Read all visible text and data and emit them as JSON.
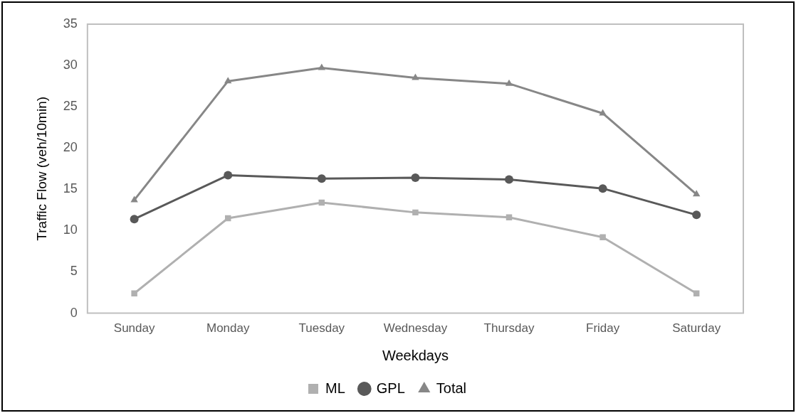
{
  "chart_data": {
    "type": "line",
    "xlabel": "Weekdays",
    "ylabel": "Traffic Flow (veh/10min)",
    "categories": [
      "Sunday",
      "Monday",
      "Tuesday",
      "Wednesday",
      "Thursday",
      "Friday",
      "Saturday"
    ],
    "series": [
      {
        "name": "ML",
        "color": "#b0b0b0",
        "marker": "square",
        "values": [
          2.4,
          11.5,
          13.4,
          12.2,
          11.6,
          9.2,
          2.4
        ]
      },
      {
        "name": "GPL",
        "color": "#595959",
        "marker": "circle",
        "values": [
          11.4,
          16.7,
          16.3,
          16.4,
          16.2,
          15.1,
          11.9
        ]
      },
      {
        "name": "Total",
        "color": "#878787",
        "marker": "triangle",
        "values": [
          13.7,
          28.1,
          29.7,
          28.5,
          27.8,
          24.2,
          14.4
        ]
      }
    ],
    "ylim": [
      0,
      35
    ],
    "yticks": [
      0,
      5,
      10,
      15,
      20,
      25,
      30,
      35
    ],
    "grid": false,
    "legend": "bottom"
  }
}
